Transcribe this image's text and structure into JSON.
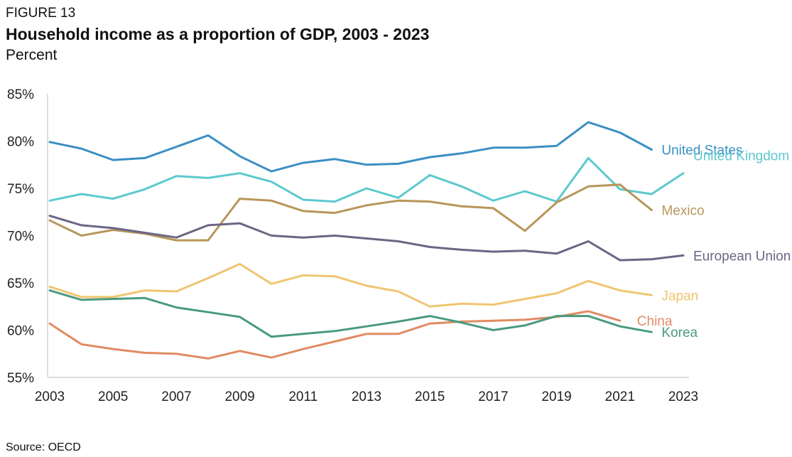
{
  "figure_label": "FIGURE 13",
  "title": "Household income as a proportion of GDP, 2003 - 2023",
  "subtitle": "Percent",
  "source": "Source: OECD",
  "chart_data": {
    "type": "line",
    "title": "Household income as a proportion of GDP, 2003 - 2023",
    "ylabel": "Percent",
    "xlabel": "",
    "xlim": [
      2003,
      2023
    ],
    "ylim": [
      55,
      85
    ],
    "x_ticks": [
      "2003",
      "2005",
      "2007",
      "2009",
      "2011",
      "2013",
      "2015",
      "2017",
      "2019",
      "2021",
      "2023"
    ],
    "y_ticks": [
      "55%",
      "60%",
      "65%",
      "70%",
      "75%",
      "80%",
      "85%"
    ],
    "grid": false,
    "legend": "inline labels at line ends",
    "series": [
      {
        "name": "United States",
        "color": "#3a8fc4",
        "x": [
          2003,
          2004,
          2005,
          2006,
          2007,
          2008,
          2009,
          2010,
          2011,
          2012,
          2013,
          2014,
          2015,
          2016,
          2017,
          2018,
          2019,
          2020,
          2021,
          2022
        ],
        "y": [
          79.9,
          79.2,
          78.0,
          78.2,
          79.4,
          80.6,
          78.4,
          76.8,
          77.7,
          78.1,
          77.5,
          77.6,
          78.3,
          78.7,
          79.3,
          79.3,
          79.5,
          82.0,
          80.9,
          79.1
        ]
      },
      {
        "name": "United Kingdom",
        "color": "#5cc9cf",
        "x": [
          2003,
          2004,
          2005,
          2006,
          2007,
          2008,
          2009,
          2010,
          2011,
          2012,
          2013,
          2014,
          2015,
          2016,
          2017,
          2018,
          2019,
          2020,
          2021,
          2022,
          2023
        ],
        "y": [
          73.7,
          74.4,
          73.9,
          74.9,
          76.3,
          76.1,
          76.6,
          75.7,
          73.8,
          73.6,
          75.0,
          74.0,
          76.4,
          75.2,
          73.7,
          74.7,
          73.6,
          78.2,
          74.9,
          74.4,
          76.6
        ]
      },
      {
        "name": "Mexico",
        "color": "#b8965a",
        "x": [
          2003,
          2004,
          2005,
          2006,
          2007,
          2008,
          2009,
          2010,
          2011,
          2012,
          2013,
          2014,
          2015,
          2016,
          2017,
          2018,
          2019,
          2020,
          2021,
          2022
        ],
        "y": [
          71.6,
          70.0,
          70.6,
          70.2,
          69.5,
          69.5,
          73.9,
          73.7,
          72.6,
          72.4,
          73.2,
          73.7,
          73.6,
          73.1,
          72.9,
          70.5,
          73.5,
          75.2,
          75.4,
          72.7
        ]
      },
      {
        "name": "European Union",
        "color": "#6c6585",
        "x": [
          2003,
          2004,
          2005,
          2006,
          2007,
          2008,
          2009,
          2010,
          2011,
          2012,
          2013,
          2014,
          2015,
          2016,
          2017,
          2018,
          2019,
          2020,
          2021,
          2022,
          2023
        ],
        "y": [
          72.1,
          71.1,
          70.8,
          70.3,
          69.8,
          71.1,
          71.3,
          70.0,
          69.8,
          70.0,
          69.7,
          69.4,
          68.8,
          68.5,
          68.3,
          68.4,
          68.1,
          69.4,
          67.4,
          67.5,
          67.9
        ]
      },
      {
        "name": "Japan",
        "color": "#f0c571",
        "x": [
          2003,
          2004,
          2005,
          2006,
          2007,
          2008,
          2009,
          2010,
          2011,
          2012,
          2013,
          2014,
          2015,
          2016,
          2017,
          2018,
          2019,
          2020,
          2021,
          2022
        ],
        "y": [
          64.6,
          63.5,
          63.5,
          64.2,
          64.1,
          65.5,
          67.0,
          64.9,
          65.8,
          65.7,
          64.7,
          64.1,
          62.5,
          62.8,
          62.7,
          63.3,
          63.9,
          65.2,
          64.2,
          63.7
        ]
      },
      {
        "name": "China",
        "color": "#e08b63",
        "x": [
          2003,
          2004,
          2005,
          2006,
          2007,
          2008,
          2009,
          2010,
          2011,
          2012,
          2013,
          2014,
          2015,
          2016,
          2017,
          2018,
          2019,
          2020,
          2021
        ],
        "y": [
          60.7,
          58.5,
          58.0,
          57.6,
          57.5,
          57.0,
          57.8,
          57.1,
          58.0,
          58.8,
          59.6,
          59.6,
          60.7,
          60.9,
          61.0,
          61.1,
          61.4,
          62.0,
          61.0
        ]
      },
      {
        "name": "Korea",
        "color": "#4a9a80",
        "x": [
          2003,
          2004,
          2005,
          2006,
          2007,
          2008,
          2009,
          2010,
          2011,
          2012,
          2013,
          2014,
          2015,
          2016,
          2017,
          2018,
          2019,
          2020,
          2021,
          2022
        ],
        "y": [
          64.2,
          63.2,
          63.3,
          63.4,
          62.4,
          61.9,
          61.4,
          59.3,
          59.6,
          59.9,
          60.4,
          60.9,
          61.5,
          60.8,
          60.0,
          60.5,
          61.5,
          61.5,
          60.4,
          59.8
        ]
      }
    ]
  }
}
